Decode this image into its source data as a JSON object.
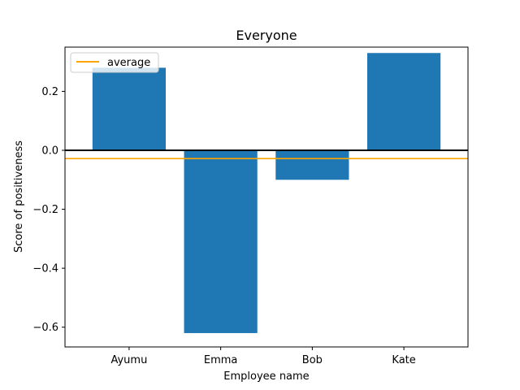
{
  "chart_data": {
    "type": "bar",
    "title": "Everyone",
    "xlabel": "Employee name",
    "ylabel": "Score of positiveness",
    "categories": [
      "Ayumu",
      "Emma",
      "Bob",
      "Kate"
    ],
    "values": [
      0.28,
      -0.62,
      -0.1,
      0.33
    ],
    "bar_color": "#1f77b4",
    "ylim": [
      -0.667,
      0.35
    ],
    "yticks": [
      0.2,
      0.0,
      -0.2,
      -0.4,
      -0.6
    ],
    "ytick_labels": [
      "0.2",
      "0.0",
      "−0.2",
      "−0.4",
      "−0.6"
    ],
    "zero_line_color": "#000000",
    "average": {
      "value": -0.028,
      "color": "#ffa500",
      "label": "average"
    },
    "legend_position": "upper-left",
    "grid": false
  }
}
